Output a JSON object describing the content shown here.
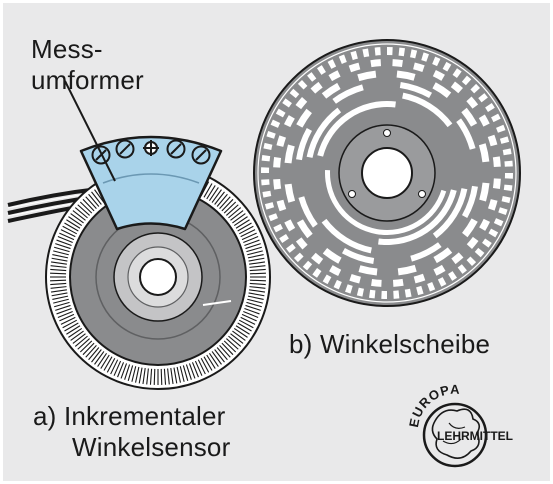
{
  "labels": {
    "transducer": [
      "Mess-",
      "umformer"
    ],
    "disc": "b) Winkelscheibe",
    "sensor": [
      "a) Inkrementaler",
      "Winkelsensor"
    ],
    "logo": [
      "EUROPA",
      "LEHRMITTEL"
    ]
  },
  "colors": {
    "background": "#e9e9ea",
    "sensor_body": "#8a8b8d",
    "hub": "#c4c4c6",
    "transducer": "#a9d3ea",
    "outline": "#1a1a1a"
  }
}
